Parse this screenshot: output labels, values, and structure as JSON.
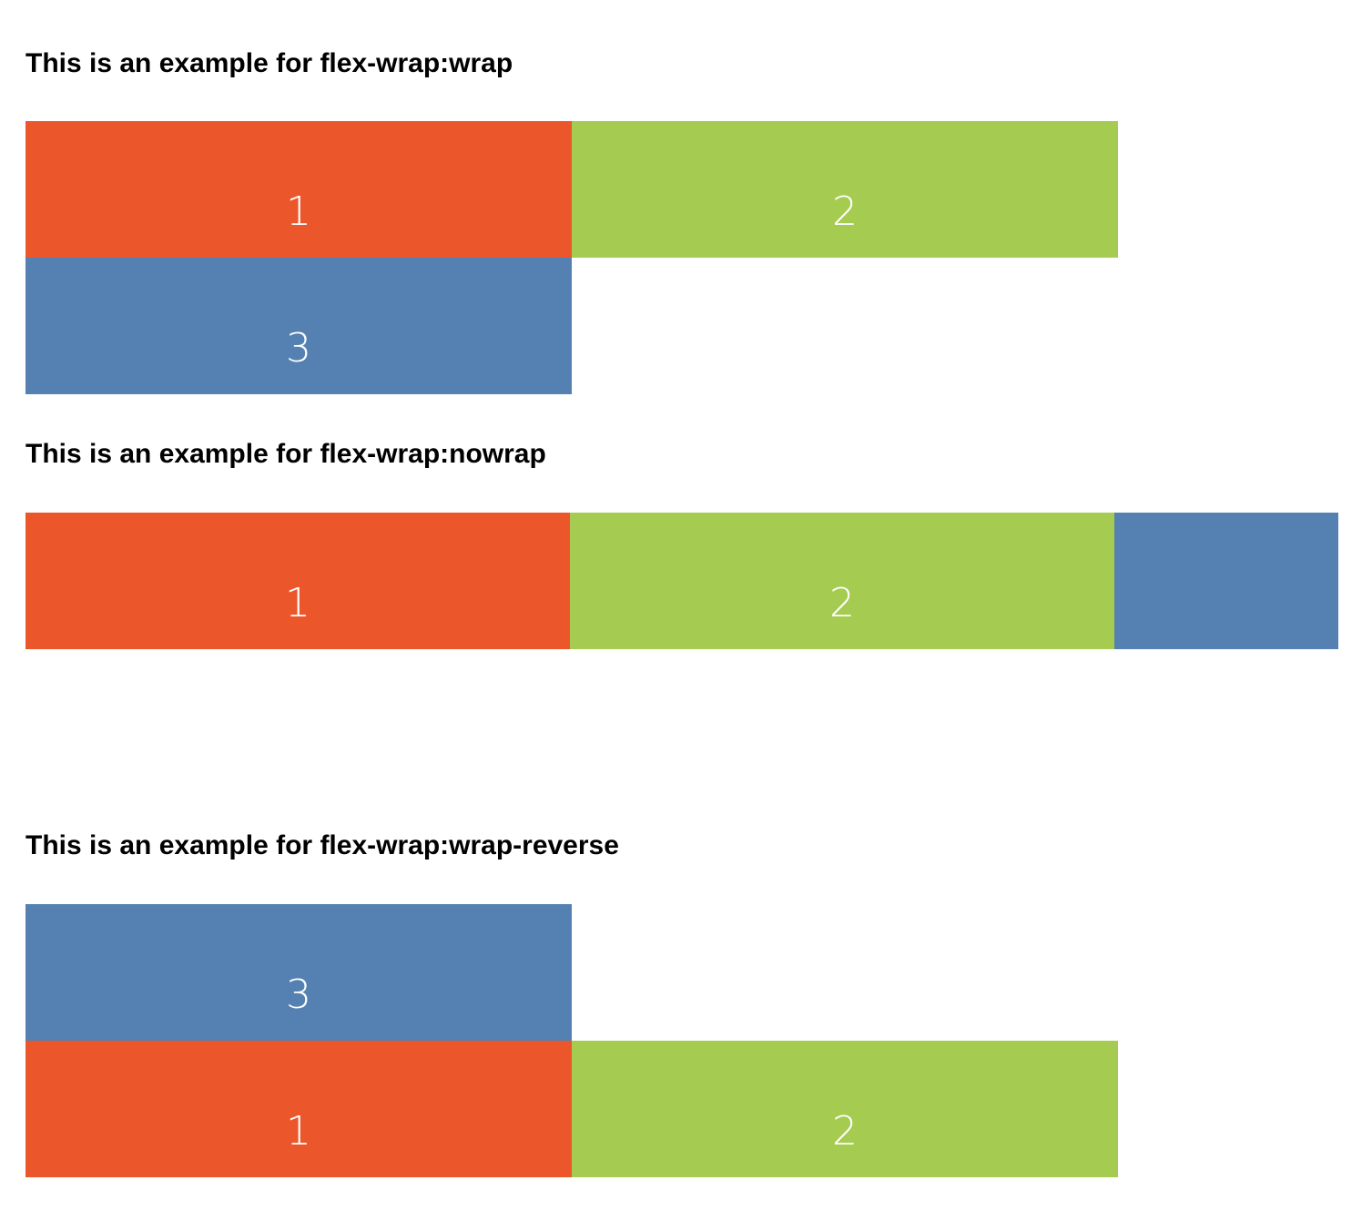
{
  "sections": [
    {
      "heading": "This is an example for flex-wrap:wrap",
      "items": [
        "1",
        "2",
        "3"
      ]
    },
    {
      "heading": "This is an example for flex-wrap:nowrap",
      "items": [
        "1",
        "2",
        ""
      ]
    },
    {
      "heading": "This is an example for flex-wrap:wrap-reverse",
      "items": [
        "3",
        "1",
        "2"
      ]
    }
  ],
  "colors": {
    "item1": "#eb572b",
    "item2": "#a6cb51",
    "item3": "#5481b1"
  }
}
